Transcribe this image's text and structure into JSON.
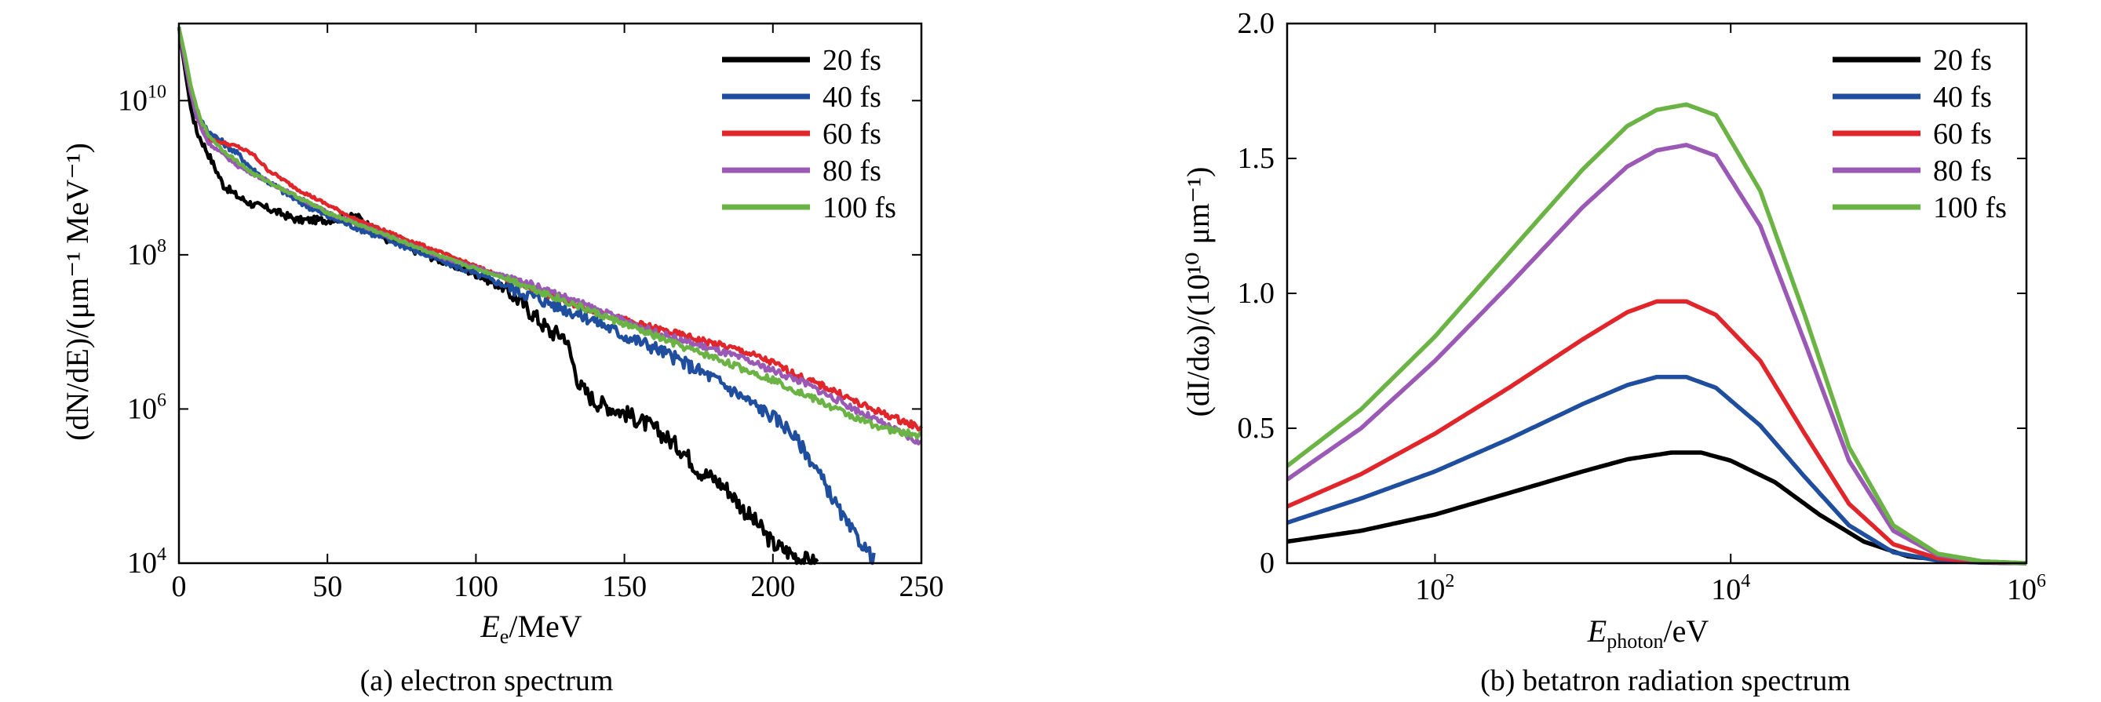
{
  "figure": {
    "captions": [
      "(a) electron spectrum",
      "(b) betatron radiation spectrum"
    ]
  },
  "chart_data": [
    {
      "type": "line",
      "caption": "(a) electron spectrum",
      "xlabel": {
        "main": "E",
        "sub": "e",
        "rest": "/MeV"
      },
      "ylabel": "(dN/dE)/(μm⁻¹ MeV⁻¹)",
      "xlim": [
        0,
        250
      ],
      "ylim_exp": [
        4,
        11
      ],
      "yscale": "log",
      "xticks": [
        0,
        50,
        100,
        150,
        200,
        250
      ],
      "xtick_labels": [
        "0",
        "50",
        "100",
        "150",
        "200",
        "250"
      ],
      "yticks_exp": [
        4,
        6,
        8,
        10
      ],
      "ytick_base": "10",
      "ytick_exp_labels": [
        "4",
        "6",
        "8",
        "10"
      ],
      "legend_position": "top-right",
      "series": [
        {
          "name": "20 fs",
          "color": "#000000",
          "noise": 0.1,
          "x": [
            0,
            2,
            4,
            6,
            8,
            10,
            15,
            20,
            25,
            30,
            40,
            50,
            60,
            70,
            80,
            90,
            100,
            110,
            115,
            120,
            125,
            130,
            133,
            135,
            140,
            150,
            160,
            170,
            175,
            180,
            185,
            190,
            195,
            200,
            205,
            210,
            215
          ],
          "logy": [
            10.95,
            10.4,
            9.9,
            9.6,
            9.45,
            9.3,
            8.9,
            8.75,
            8.65,
            8.6,
            8.45,
            8.45,
            8.5,
            8.2,
            8.05,
            7.9,
            7.75,
            7.55,
            7.4,
            7.2,
            7.0,
            6.95,
            6.55,
            6.3,
            6.1,
            5.95,
            5.75,
            5.45,
            5.2,
            5.1,
            4.95,
            4.7,
            4.5,
            4.25,
            4.15,
            4.05,
            4.0
          ]
        },
        {
          "name": "40 fs",
          "color": "#1f4e9e",
          "noise": 0.08,
          "x": [
            0,
            2,
            4,
            6,
            8,
            10,
            15,
            20,
            25,
            30,
            40,
            50,
            60,
            70,
            80,
            90,
            100,
            110,
            120,
            130,
            140,
            150,
            160,
            170,
            180,
            190,
            200,
            205,
            210,
            215,
            220,
            225,
            230,
            234
          ],
          "logy": [
            10.95,
            10.5,
            10.1,
            9.8,
            9.7,
            9.6,
            9.45,
            9.3,
            9.1,
            8.95,
            8.7,
            8.5,
            8.35,
            8.2,
            8.05,
            7.9,
            7.75,
            7.6,
            7.45,
            7.3,
            7.15,
            6.95,
            6.8,
            6.6,
            6.4,
            6.15,
            5.9,
            5.75,
            5.5,
            5.2,
            4.85,
            4.5,
            4.25,
            4.05
          ]
        },
        {
          "name": "60 fs",
          "color": "#e0262b",
          "noise": 0.04,
          "x": [
            0,
            2,
            4,
            6,
            8,
            10,
            15,
            20,
            25,
            30,
            40,
            50,
            60,
            70,
            80,
            90,
            100,
            110,
            120,
            130,
            140,
            150,
            160,
            170,
            180,
            190,
            200,
            210,
            220,
            230,
            240,
            250
          ],
          "logy": [
            10.95,
            10.5,
            10.1,
            9.8,
            9.6,
            9.5,
            9.45,
            9.4,
            9.3,
            9.1,
            8.85,
            8.65,
            8.45,
            8.3,
            8.15,
            8.0,
            7.85,
            7.7,
            7.55,
            7.4,
            7.28,
            7.15,
            7.05,
            6.95,
            6.85,
            6.75,
            6.6,
            6.4,
            6.25,
            6.05,
            5.9,
            5.75
          ]
        },
        {
          "name": "80 fs",
          "color": "#9b59b6",
          "noise": 0.04,
          "x": [
            0,
            2,
            4,
            6,
            8,
            10,
            15,
            20,
            25,
            30,
            40,
            50,
            60,
            70,
            80,
            90,
            100,
            110,
            120,
            130,
            140,
            150,
            160,
            170,
            180,
            190,
            200,
            210,
            220,
            230,
            240,
            250
          ],
          "logy": [
            10.95,
            10.5,
            10.1,
            9.8,
            9.6,
            9.45,
            9.3,
            9.15,
            9.05,
            8.95,
            8.75,
            8.55,
            8.4,
            8.25,
            8.1,
            7.95,
            7.83,
            7.72,
            7.6,
            7.45,
            7.3,
            7.15,
            7.0,
            6.88,
            6.77,
            6.65,
            6.5,
            6.35,
            6.15,
            5.95,
            5.75,
            5.55
          ]
        },
        {
          "name": "100 fs",
          "color": "#6ab344",
          "noise": 0.04,
          "x": [
            0,
            2,
            4,
            6,
            8,
            10,
            15,
            20,
            25,
            30,
            40,
            50,
            60,
            70,
            80,
            90,
            100,
            110,
            120,
            130,
            140,
            150,
            160,
            170,
            180,
            190,
            200,
            210,
            220,
            230,
            240,
            250
          ],
          "logy": [
            10.95,
            10.6,
            10.2,
            9.9,
            9.7,
            9.55,
            9.35,
            9.2,
            9.05,
            8.95,
            8.75,
            8.55,
            8.4,
            8.25,
            8.1,
            7.95,
            7.82,
            7.7,
            7.55,
            7.4,
            7.25,
            7.1,
            6.95,
            6.8,
            6.67,
            6.52,
            6.38,
            6.2,
            6.02,
            5.85,
            5.72,
            5.65
          ]
        }
      ]
    },
    {
      "type": "line",
      "caption": "(b) betatron radiation spectrum",
      "xlabel": {
        "main": "E",
        "sub": "photon",
        "rest": "/eV"
      },
      "ylabel": "(dI/dω)/(10¹⁰ μm⁻¹)",
      "xscale": "log",
      "xlim_exp": [
        1,
        6
      ],
      "ylim": [
        0,
        2.0
      ],
      "xticks_exp": [
        2,
        4,
        6
      ],
      "xtick_base": "10",
      "xtick_exp_labels": [
        "2",
        "4",
        "6"
      ],
      "yticks": [
        0,
        0.5,
        1.0,
        1.5,
        2.0
      ],
      "ytick_labels": [
        "0",
        "0.5",
        "1.0",
        "1.5",
        "2.0"
      ],
      "legend_position": "top-right",
      "series": [
        {
          "name": "20 fs",
          "color": "#000000",
          "log10x": [
            1.0,
            1.5,
            2.0,
            2.5,
            3.0,
            3.3,
            3.6,
            3.8,
            4.0,
            4.3,
            4.6,
            4.9,
            5.2,
            5.5,
            5.8,
            6.0
          ],
          "y": [
            0.08,
            0.12,
            0.18,
            0.26,
            0.34,
            0.385,
            0.41,
            0.41,
            0.38,
            0.3,
            0.18,
            0.08,
            0.025,
            0.008,
            0.002,
            0.0
          ]
        },
        {
          "name": "40 fs",
          "color": "#1f4e9e",
          "log10x": [
            1.0,
            1.5,
            2.0,
            2.5,
            3.0,
            3.3,
            3.5,
            3.7,
            3.9,
            4.2,
            4.5,
            4.8,
            5.1,
            5.4,
            5.7,
            6.0
          ],
          "y": [
            0.15,
            0.24,
            0.34,
            0.46,
            0.59,
            0.66,
            0.69,
            0.69,
            0.65,
            0.51,
            0.32,
            0.14,
            0.04,
            0.01,
            0.002,
            0.0
          ]
        },
        {
          "name": "60 fs",
          "color": "#e0262b",
          "log10x": [
            1.0,
            1.5,
            2.0,
            2.5,
            3.0,
            3.3,
            3.5,
            3.7,
            3.9,
            4.2,
            4.5,
            4.8,
            5.1,
            5.4,
            5.7,
            6.0
          ],
          "y": [
            0.21,
            0.33,
            0.48,
            0.65,
            0.83,
            0.93,
            0.97,
            0.97,
            0.92,
            0.75,
            0.48,
            0.22,
            0.07,
            0.018,
            0.004,
            0.0
          ]
        },
        {
          "name": "80 fs",
          "color": "#9b59b6",
          "log10x": [
            1.0,
            1.5,
            2.0,
            2.5,
            3.0,
            3.3,
            3.5,
            3.7,
            3.9,
            4.2,
            4.5,
            4.8,
            5.1,
            5.4,
            5.7,
            6.0
          ],
          "y": [
            0.31,
            0.5,
            0.75,
            1.03,
            1.32,
            1.47,
            1.53,
            1.55,
            1.51,
            1.25,
            0.82,
            0.38,
            0.12,
            0.03,
            0.006,
            0.0
          ]
        },
        {
          "name": "100 fs",
          "color": "#6ab344",
          "log10x": [
            1.0,
            1.5,
            2.0,
            2.5,
            3.0,
            3.3,
            3.5,
            3.7,
            3.9,
            4.2,
            4.5,
            4.8,
            5.1,
            5.4,
            5.7,
            6.0
          ],
          "y": [
            0.36,
            0.57,
            0.84,
            1.15,
            1.46,
            1.62,
            1.68,
            1.7,
            1.66,
            1.38,
            0.92,
            0.43,
            0.14,
            0.035,
            0.007,
            0.0
          ]
        }
      ]
    }
  ]
}
